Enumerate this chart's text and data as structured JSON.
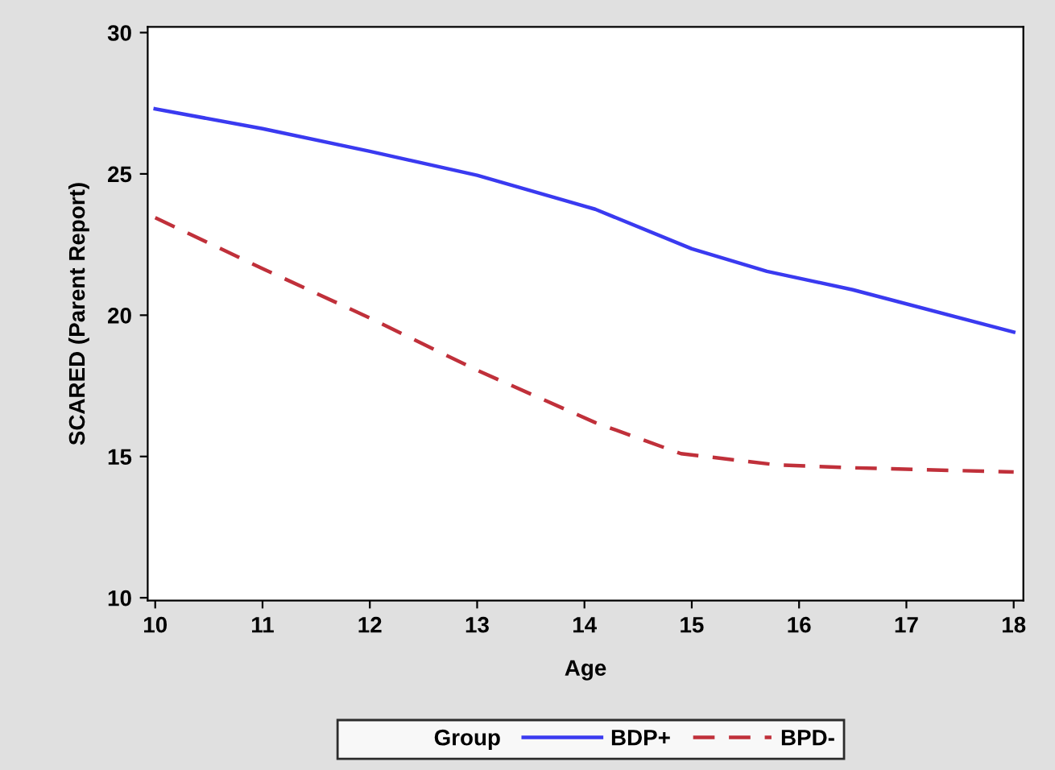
{
  "chart_data": {
    "type": "line",
    "xlabel": "Age",
    "ylabel": "SCARED (Parent Report)",
    "legend_title": "Group",
    "xlim": [
      9.93,
      18.09
    ],
    "xticks": [
      10,
      11,
      12,
      13,
      14,
      15,
      16,
      17,
      18
    ],
    "ylim": [
      9.9,
      30.2
    ],
    "yticks": [
      10,
      15,
      20,
      25,
      30
    ],
    "grid": false,
    "legend": "bottom",
    "series": [
      {
        "name": "BDP+",
        "color": "#3a3af0",
        "line_style": "solid",
        "x": [
          10,
          11,
          12,
          13,
          14.1,
          15,
          15.7,
          16.5,
          18
        ],
        "values": [
          27.3,
          26.6,
          25.8,
          24.95,
          23.75,
          22.35,
          21.55,
          20.9,
          19.4
        ]
      },
      {
        "name": "BPD-",
        "color": "#c0303a",
        "line_style": "dashed",
        "x": [
          10,
          11,
          12,
          13,
          14.1,
          14.9,
          15.8,
          16.5,
          18
        ],
        "values": [
          23.45,
          21.65,
          19.9,
          18.05,
          16.2,
          15.1,
          14.7,
          14.6,
          14.45
        ]
      }
    ]
  }
}
